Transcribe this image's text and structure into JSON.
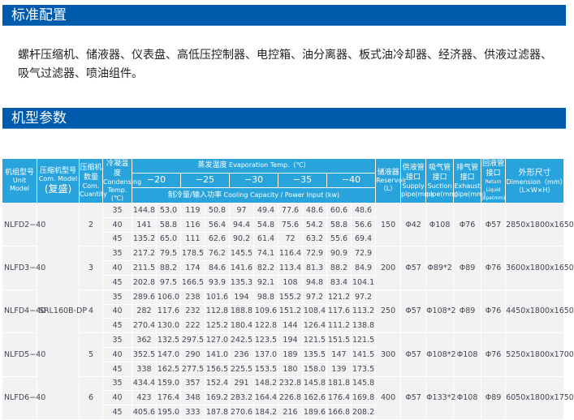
{
  "section1": {
    "title": "标准配置",
    "text": "螺杆压缩机、储液器、仪表盘、高低压控制器、电控箱、油分离器、板式油冷却器、经济器、供液过滤器、吸气过滤器、喷油组件。"
  },
  "section2": {
    "title": "机型参数"
  },
  "table": {
    "headers": {
      "unit_model": {
        "cn": "机组型号",
        "en": "Unit Model"
      },
      "com_model": {
        "cn": "压缩机型号",
        "en": "Com. Model",
        "sub": "(复盛)"
      },
      "com_qty": {
        "cn": "压缩机数量",
        "en": "Com. Cuantity"
      },
      "cond_temp": {
        "cn": "冷凝温度",
        "en": "Condensing Temp. (℃)"
      },
      "evap": {
        "cn": "蒸发温度",
        "en": "Evaporation Temp.（℃）"
      },
      "evap_temps": [
        "−20",
        "−25",
        "−30",
        "−35",
        "−40"
      ],
      "capacity": {
        "cn": "制冷量/输入功率",
        "en": "Cooling Capacity / Power Input (kw)"
      },
      "reservoir": {
        "cn": "储液器",
        "en": "Reservoir（L）"
      },
      "supply": {
        "cn": "供液管接口",
        "en": "Supply pipe(mm)"
      },
      "suction": {
        "cn": "吸气管接口",
        "en": "Suction pipe(mm)"
      },
      "exhaust": {
        "cn": "排气管接口",
        "en": "Exhaust pipe(mm)"
      },
      "return": {
        "cn": "回液管接口",
        "en": "Return Liquid pipe(mm)"
      },
      "dimension": {
        "cn": "外形尺寸",
        "en": "Dimension（mm）（L×W×H）"
      }
    },
    "com_model_value": "SRL160B-DP",
    "units": [
      {
        "model": "NLFD2−40",
        "qty": "2",
        "reservoir": "150",
        "supply": "Φ42",
        "suction": "Φ108",
        "exhaust": "Φ76",
        "return": "Φ57",
        "dimension": "2850x1800x1650",
        "rows": [
          [
            "35",
            "144.8",
            "53.0",
            "119",
            "50.8",
            "97",
            "49.4",
            "77.6",
            "48.6",
            "60.6",
            "48.6"
          ],
          [
            "40",
            "141",
            "58.8",
            "116",
            "56.4",
            "94.4",
            "54.8",
            "75.6",
            "54.2",
            "58.8",
            "56.6"
          ],
          [
            "45",
            "135.2",
            "65.0",
            "111",
            "62.6",
            "90.2",
            "61.4",
            "72",
            "63.2",
            "55.6",
            "69.4"
          ]
        ]
      },
      {
        "model": "NLFD3−40",
        "qty": "3",
        "reservoir": "200",
        "supply": "Φ57",
        "suction": "Φ89*2",
        "exhaust": "Φ89",
        "return": "Φ76",
        "dimension": "3600x1800x1650",
        "rows": [
          [
            "35",
            "217.2",
            "79.5",
            "178.5",
            "76.2",
            "145.5",
            "74.1",
            "116.4",
            "72.9",
            "90.9",
            "72.9"
          ],
          [
            "40",
            "211.5",
            "88.2",
            "174",
            "84.6",
            "141.6",
            "82.2",
            "113.4",
            "81.3",
            "88.2",
            "84.9"
          ],
          [
            "45",
            "202.8",
            "97.5",
            "166.5",
            "93.9",
            "135.3",
            "92.1",
            "108",
            "94.8",
            "83.4",
            "104.1"
          ]
        ]
      },
      {
        "model": "NLFD4−40",
        "qty": "4",
        "reservoir": "250",
        "supply": "Φ57",
        "suction": "Φ108*2",
        "exhaust": "Φ89",
        "return": "Φ76",
        "dimension": "4450x1800x1650",
        "rows": [
          [
            "35",
            "289.6",
            "106.0",
            "238",
            "101.6",
            "194",
            "98.8",
            "155.2",
            "97.2",
            "121.2",
            "97.2"
          ],
          [
            "40",
            "282",
            "117.6",
            "232",
            "112.8",
            "188.8",
            "109.6",
            "151.2",
            "108.4",
            "117.6",
            "113.2"
          ],
          [
            "45",
            "270.4",
            "130.0",
            "222",
            "125.2",
            "180.4",
            "122.8",
            "144",
            "126.4",
            "111.2",
            "138.8"
          ]
        ]
      },
      {
        "model": "NLFD5−40",
        "qty": "5",
        "reservoir": "300",
        "supply": "Φ57",
        "suction": "Φ108*2",
        "exhaust": "Φ108",
        "return": "Φ76",
        "dimension": "5250x1800x1700",
        "rows": [
          [
            "35",
            "362",
            "132.5",
            "297.5",
            "127.0",
            "242.5",
            "123.5",
            "194",
            "121.5",
            "151.5",
            "121.5"
          ],
          [
            "40",
            "352.5",
            "147.0",
            "290",
            "141.0",
            "236",
            "137.0",
            "189",
            "135.5",
            "147",
            "141.5"
          ],
          [
            "45",
            "338",
            "162.5",
            "277.5",
            "156.5",
            "225.5",
            "153.5",
            "180",
            "158.0",
            "139",
            "173.5"
          ]
        ]
      },
      {
        "model": "NLFD6−40",
        "qty": "6",
        "reservoir": "400",
        "supply": "Φ57",
        "suction": "Φ133*2",
        "exhaust": "Φ108",
        "return": "Φ89",
        "dimension": "6050x1800x1750",
        "rows": [
          [
            "35",
            "434.4",
            "159.0",
            "357",
            "152.4",
            "291",
            "148.2",
            "232.8",
            "145.8",
            "181.8",
            "145.8"
          ],
          [
            "40",
            "423",
            "176.4",
            "348",
            "169.2",
            "283.2",
            "164.4",
            "226.8",
            "162.6",
            "176.4",
            "169.8"
          ],
          [
            "45",
            "405.6",
            "195.0",
            "333",
            "187.8",
            "270.6",
            "184.2",
            "216",
            "189.6",
            "166.8",
            "208.2"
          ]
        ]
      }
    ]
  },
  "colors": {
    "banner": "#005bac",
    "header": "#29a3dc",
    "cell": "#f2f2f2"
  }
}
